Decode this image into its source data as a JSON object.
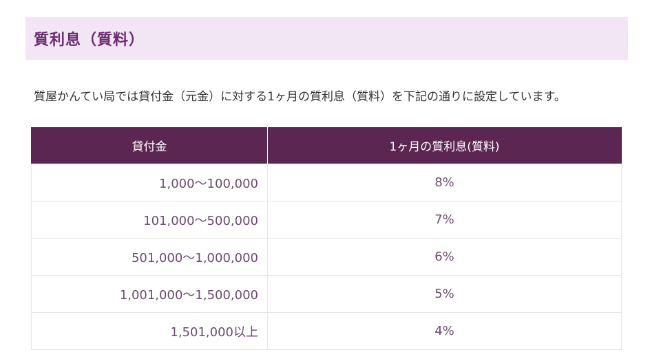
{
  "section": {
    "title": "質利息（質料）",
    "intro": "質屋かんてい局では貸付金（元金）に対する1ヶ月の質利息（質料）を下記の通りに設定しています。"
  },
  "table": {
    "headers": [
      "貸付金",
      "1ヶ月の質利息(質料)"
    ],
    "rows": [
      {
        "amount": "1,000～100,000",
        "rate": "8%"
      },
      {
        "amount": "101,000～500,000",
        "rate": "7%"
      },
      {
        "amount": "501,000～1,000,000",
        "rate": "6%"
      },
      {
        "amount": "1,001,000～1,500,000",
        "rate": "5%"
      },
      {
        "amount": "1,501,000以上",
        "rate": "4%"
      }
    ]
  },
  "colors": {
    "heading_bg": "#f2e6f4",
    "heading_text": "#6b2a72",
    "table_header_bg": "#5b2652",
    "cell_text": "#6b4a6f"
  }
}
